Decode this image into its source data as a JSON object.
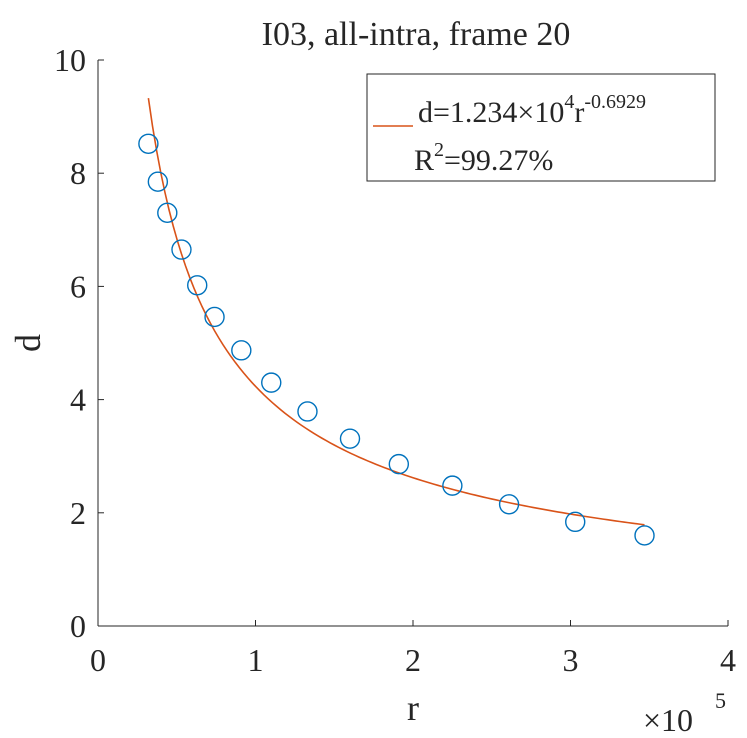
{
  "chart_data": {
    "type": "scatter",
    "title": "I03, all-intra, frame 20",
    "xlabel": "r",
    "ylabel": "d",
    "x_exponent_label": "×10",
    "x_exponent": "5",
    "xlim": [
      0,
      4
    ],
    "ylim": [
      0,
      10
    ],
    "xticks": [
      "0",
      "1",
      "2",
      "3",
      "4"
    ],
    "yticks": [
      "0",
      "2",
      "4",
      "6",
      "8",
      "10"
    ],
    "x_scale_note": "x values in units of 10^5",
    "grid": false,
    "legend_position": "top-right",
    "series": [
      {
        "kind": "markers",
        "marker": "circle",
        "color": "#0072BD",
        "x": [
          0.32,
          0.38,
          0.44,
          0.53,
          0.63,
          0.74,
          0.91,
          1.1,
          1.33,
          1.6,
          1.91,
          2.25,
          2.61,
          3.03,
          3.47
        ],
        "y": [
          8.52,
          7.85,
          7.3,
          6.65,
          6.02,
          5.46,
          4.87,
          4.3,
          3.79,
          3.31,
          2.86,
          2.48,
          2.15,
          1.84,
          1.6
        ]
      },
      {
        "kind": "fit-curve",
        "color": "#D95319",
        "coefficient": 12340,
        "exponent": -0.6929,
        "x_range": [
          0.32,
          3.47
        ]
      }
    ],
    "legend": {
      "line1_main": "d=1.234×10",
      "line1_sup": "4",
      "line1_r": "r",
      "line1_exp": "-0.6929",
      "line2_main": "R",
      "line2_sup": "2",
      "line2_rest": "=99.27%"
    }
  }
}
